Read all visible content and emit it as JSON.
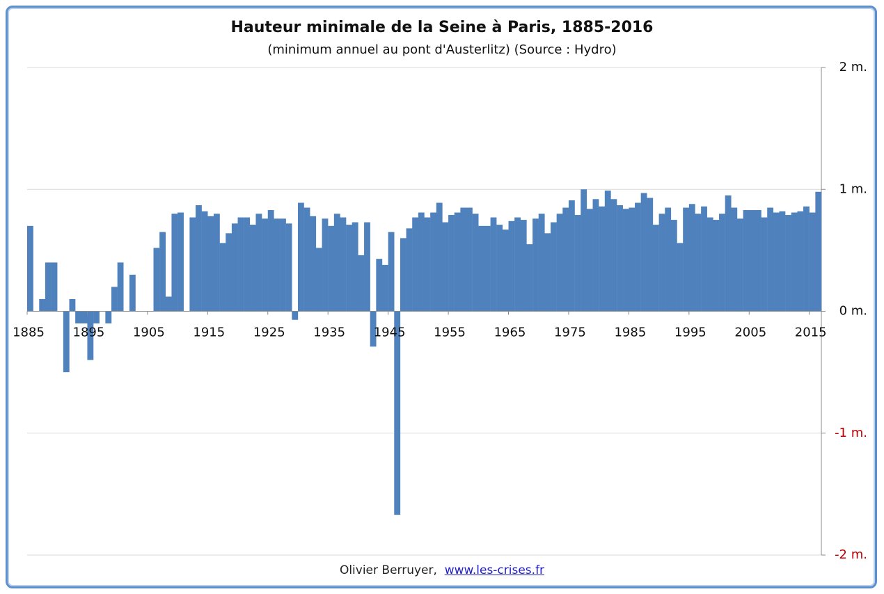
{
  "chart_data": {
    "type": "bar",
    "title": "Hauteur minimale de la Seine à Paris, 1885-2016",
    "subtitle": "(minimum annuel au pont d'Austerlitz) (Source : Hydro)",
    "categories": [
      "1885",
      null,
      null,
      null,
      null,
      null,
      null,
      null,
      null,
      null,
      "1895",
      null,
      null,
      null,
      null,
      null,
      null,
      null,
      null,
      null,
      "1905",
      null,
      null,
      null,
      null,
      null,
      null,
      null,
      null,
      null,
      "1915",
      null,
      null,
      null,
      null,
      null,
      null,
      null,
      null,
      null,
      "1925",
      null,
      null,
      null,
      null,
      null,
      null,
      null,
      null,
      null,
      "1935",
      null,
      null,
      null,
      null,
      null,
      null,
      null,
      null,
      null,
      "1945",
      null,
      null,
      null,
      null,
      null,
      null,
      null,
      null,
      null,
      "1955",
      null,
      null,
      null,
      null,
      null,
      null,
      null,
      null,
      null,
      "1965",
      null,
      null,
      null,
      null,
      null,
      null,
      null,
      null,
      null,
      "1975",
      null,
      null,
      null,
      null,
      null,
      null,
      null,
      null,
      null,
      "1985",
      null,
      null,
      null,
      null,
      null,
      null,
      null,
      null,
      null,
      "1995",
      null,
      null,
      null,
      null,
      null,
      null,
      null,
      null,
      null,
      "2005",
      null,
      null,
      null,
      null,
      null,
      null,
      null,
      null,
      null,
      "2015",
      null
    ],
    "values": [
      0.7,
      0,
      0.1,
      0.4,
      0.4,
      0,
      -0.5,
      0.1,
      -0.1,
      -0.1,
      -0.4,
      -0.1,
      0,
      -0.1,
      0.2,
      0.4,
      0,
      0.3,
      0,
      0,
      0,
      0.52,
      0.65,
      0.12,
      0.8,
      0.81,
      0,
      0.77,
      0.87,
      0.82,
      0.78,
      0.8,
      0.56,
      0.64,
      0.72,
      0.77,
      0.77,
      0.71,
      0.8,
      0.76,
      0.83,
      0.76,
      0.76,
      0.72,
      -0.07,
      0.89,
      0.85,
      0.78,
      0.52,
      0.76,
      0.7,
      0.8,
      0.77,
      0.71,
      0.73,
      0.46,
      0.73,
      -0.29,
      0.43,
      0.38,
      0.65,
      -1.67,
      0.6,
      0.68,
      0.77,
      0.81,
      0.77,
      0.81,
      0.89,
      0.73,
      0.79,
      0.81,
      0.85,
      0.85,
      0.8,
      0.7,
      0.7,
      0.77,
      0.71,
      0.67,
      0.74,
      0.77,
      0.75,
      0.55,
      0.76,
      0.8,
      0.64,
      0.73,
      0.8,
      0.85,
      0.91,
      0.79,
      1.0,
      0.84,
      0.92,
      0.86,
      0.99,
      0.92,
      0.87,
      0.84,
      0.85,
      0.89,
      0.97,
      0.93,
      0.71,
      0.8,
      0.85,
      0.75,
      0.56,
      0.85,
      0.88,
      0.8,
      0.86,
      0.77,
      0.75,
      0.8,
      0.95,
      0.85,
      0.76,
      0.83,
      0.83,
      0.83,
      0.77,
      0.85,
      0.81,
      0.82,
      0.79,
      0.81,
      0.82,
      0.86,
      0.81,
      0.98
    ],
    "color": "#4f81bd",
    "ylim": [
      -2,
      2
    ],
    "yticks": [
      {
        "value": -2,
        "label": "-2 m."
      },
      {
        "value": -1,
        "label": "-1 m."
      },
      {
        "value": 0,
        "label": "0 m."
      },
      {
        "value": 1,
        "label": "1 m."
      },
      {
        "value": 2,
        "label": "2 m."
      }
    ],
    "negative_label_color": "#c00000",
    "grid": true
  },
  "footer": {
    "author": "Olivier Berruyer,",
    "link": "www.les-crises.fr"
  }
}
